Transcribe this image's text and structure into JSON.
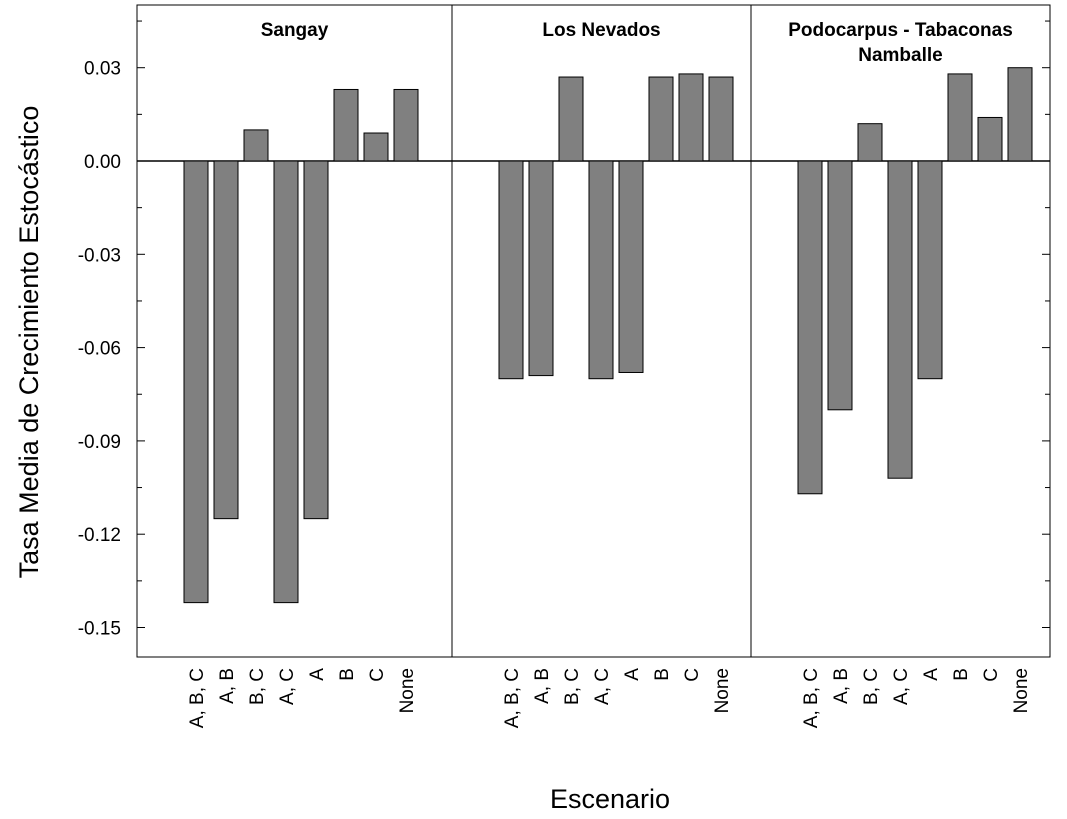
{
  "chart_data": {
    "type": "bar",
    "ylabel": "Tasa Media de Crecimiento Estocástico",
    "xlabel": "Escenario",
    "ylim": [
      -0.16,
      0.05
    ],
    "yticks": [
      "0.03",
      "0.00",
      "-0.03",
      "-0.06",
      "-0.09",
      "-0.12",
      "-0.15"
    ],
    "ytick_values": [
      0.03,
      0.0,
      -0.03,
      -0.06,
      -0.09,
      -0.12,
      -0.15
    ],
    "categories": [
      "A, B, C",
      "A, B",
      "B, C",
      "A, C",
      "A",
      "B",
      "C",
      "None"
    ],
    "bar_color": "#808080",
    "grid": false,
    "panels": [
      {
        "title_lines": [
          "Sangay"
        ],
        "values": [
          -0.142,
          -0.115,
          0.01,
          -0.142,
          -0.115,
          0.023,
          0.009,
          0.023
        ]
      },
      {
        "title_lines": [
          "Los Nevados"
        ],
        "values": [
          -0.07,
          -0.069,
          0.027,
          -0.07,
          -0.068,
          0.027,
          0.028,
          0.027
        ]
      },
      {
        "title_lines": [
          "Podocarpus - Tabaconas",
          "Namballe"
        ],
        "values": [
          -0.107,
          -0.08,
          0.012,
          -0.102,
          -0.07,
          0.028,
          0.014,
          0.03
        ]
      }
    ]
  }
}
